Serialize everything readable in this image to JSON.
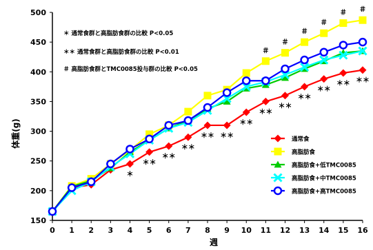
{
  "chart_data": {
    "type": "line",
    "xlabel": "週",
    "ylabel": "体重(g)",
    "x": [
      0,
      1,
      2,
      3,
      4,
      5,
      6,
      7,
      8,
      9,
      10,
      11,
      12,
      13,
      14,
      15,
      16
    ],
    "xlim": [
      0,
      16
    ],
    "ylim": [
      150,
      500
    ],
    "yticks": [
      150,
      200,
      250,
      300,
      350,
      400,
      450,
      500
    ],
    "grid": false,
    "legend_position": "bottom-right",
    "series": [
      {
        "name": "通常食",
        "color": "#ff0000",
        "marker": "diamond",
        "values": [
          165,
          205,
          210,
          235,
          245,
          265,
          275,
          290,
          310,
          310,
          332,
          350,
          360,
          375,
          388,
          398,
          403
        ]
      },
      {
        "name": "高脂肪食",
        "color": "#ffff00",
        "marker": "square",
        "values": [
          165,
          208,
          220,
          245,
          268,
          295,
          310,
          333,
          360,
          370,
          398,
          418,
          432,
          450,
          465,
          482,
          487
        ]
      },
      {
        "name": "高脂肪食+低TMC0085",
        "color": "#00cc00",
        "marker": "triangle",
        "values": [
          165,
          207,
          217,
          238,
          265,
          285,
          305,
          318,
          338,
          350,
          372,
          378,
          390,
          405,
          418,
          432,
          435
        ]
      },
      {
        "name": "高脂肪食+中TMC0085",
        "color": "#00ffff",
        "marker": "x",
        "values": [
          165,
          200,
          215,
          240,
          262,
          285,
          305,
          315,
          335,
          355,
          375,
          383,
          395,
          408,
          420,
          428,
          435
        ]
      },
      {
        "name": "高脂肪食+高TMC0085",
        "color": "#0000ff",
        "marker": "circle",
        "values": [
          165,
          205,
          215,
          245,
          270,
          287,
          310,
          318,
          340,
          365,
          385,
          385,
          405,
          420,
          433,
          445,
          450
        ]
      }
    ],
    "annotations": [
      "＊ 通常食群と高脂肪食群の比較 P<0.05",
      "＊＊ 通常食群と高脂肪食群の比較 P<0.01",
      "＃ 高脂肪食群とTMC0085投与群の比較 P<0.05"
    ],
    "significance_marks": [
      {
        "x": 4,
        "mark": "＊",
        "anchor_series": 0
      },
      {
        "x": 5,
        "mark": "＊＊",
        "anchor_series": 0
      },
      {
        "x": 6,
        "mark": "＊＊",
        "anchor_series": 0
      },
      {
        "x": 7,
        "mark": "＊＊",
        "anchor_series": 0
      },
      {
        "x": 8,
        "mark": "＊＊",
        "anchor_series": 0
      },
      {
        "x": 9,
        "mark": "＊＊",
        "anchor_series": 0
      },
      {
        "x": 10,
        "mark": "＊＊",
        "anchor_series": 0
      },
      {
        "x": 11,
        "mark": "＊＊",
        "anchor_series": 0
      },
      {
        "x": 12,
        "mark": "＊＊",
        "anchor_series": 0
      },
      {
        "x": 13,
        "mark": "＊＊",
        "anchor_series": 0
      },
      {
        "x": 14,
        "mark": "＊＊",
        "anchor_series": 0
      },
      {
        "x": 15,
        "mark": "＊＊",
        "anchor_series": 0
      },
      {
        "x": 16,
        "mark": "＊＊",
        "anchor_series": 0
      },
      {
        "x": 11,
        "mark": "＃",
        "anchor_series": 1
      },
      {
        "x": 12,
        "mark": "＃",
        "anchor_series": 1
      },
      {
        "x": 13,
        "mark": "＃",
        "anchor_series": 1
      },
      {
        "x": 14,
        "mark": "＃",
        "anchor_series": 1
      },
      {
        "x": 15,
        "mark": "＃",
        "anchor_series": 1
      },
      {
        "x": 16,
        "mark": "＃",
        "anchor_series": 1
      }
    ]
  }
}
